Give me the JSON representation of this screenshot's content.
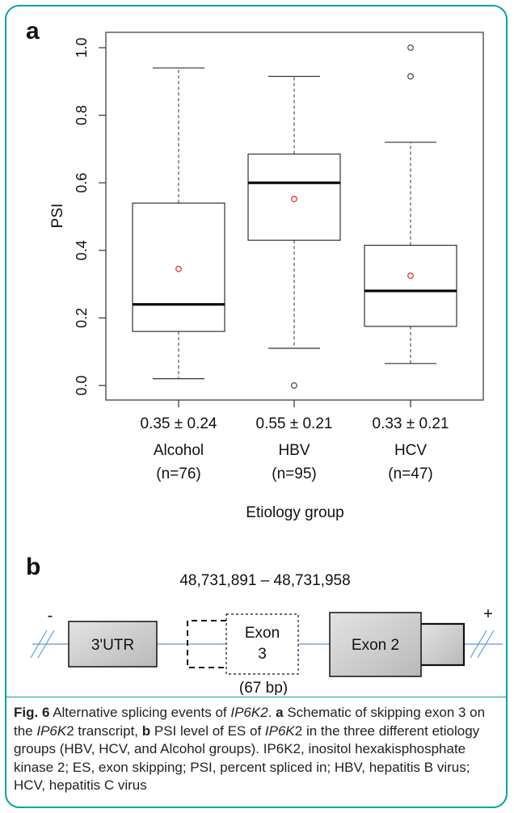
{
  "panel_a_label": "a",
  "panel_b_label": "b",
  "chart_data": {
    "type": "box",
    "ylabel": "PSI",
    "xlabel": "Etiology group",
    "ylim": [
      0.0,
      1.0
    ],
    "yticks": [
      "0.0",
      "0.2",
      "0.4",
      "0.6",
      "0.8",
      "1.0"
    ],
    "grid": false,
    "groups": [
      {
        "name": "Alcohol",
        "n_label": "(n=76)",
        "stat_label": "0.35 ± 0.24",
        "min": 0.02,
        "q1": 0.16,
        "median": 0.24,
        "q3": 0.54,
        "max": 0.94,
        "mean": 0.345,
        "outliers": []
      },
      {
        "name": "HBV",
        "n_label": "(n=95)",
        "stat_label": "0.55 ± 0.21",
        "min": 0.11,
        "q1": 0.43,
        "median": 0.6,
        "q3": 0.685,
        "max": 0.915,
        "mean": 0.552,
        "outliers": [
          0.0
        ]
      },
      {
        "name": "HCV",
        "n_label": "(n=47)",
        "stat_label": "0.33 ± 0.21",
        "min": 0.065,
        "q1": 0.175,
        "median": 0.28,
        "q3": 0.415,
        "max": 0.72,
        "mean": 0.325,
        "outliers": [
          0.915,
          1.0
        ]
      }
    ],
    "colors": {
      "mean_marker": "#e8232a",
      "box": "#333333",
      "median": "#000000"
    }
  },
  "schematic": {
    "coordinates": "48,731,891 – 48,731,958",
    "minus_strand": "-",
    "plus_strand": "+",
    "utr_label": "3'UTR",
    "exon3_label_line1": "Exon",
    "exon3_label_line2": "3",
    "exon2_label": "Exon 2",
    "size_label": "(67 bp)",
    "colors": {
      "line": "#5b9bd5",
      "box_fill": "#c8c8c8"
    }
  },
  "caption": {
    "fig_label": "Fig. 6",
    "t1": " Alternative splicing events of ",
    "gene": "IP6K2",
    "t2": ". ",
    "a": "a",
    "t3": " Schematic of skipping exon 3 on the ",
    "gene_b": "IP6K",
    "t4": "2 transcript, ",
    "b": "b",
    "t5": " PSI level of ES of ",
    "gene_c": "IP6K",
    "t6": "2 in the three different etiology groups (HBV, HCV, and Alcohol groups). IP6K2, inositol hexakisphosphate kinase 2; ES, exon skipping; PSI, percent spliced in; HBV, hepatitis B virus; HCV, hepatitis C virus"
  }
}
